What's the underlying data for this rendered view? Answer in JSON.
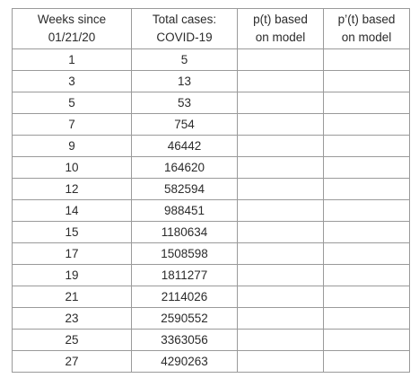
{
  "table": {
    "headers": [
      [
        "Weeks since",
        "01/21/20"
      ],
      [
        "Total cases:",
        "COVID-19"
      ],
      [
        "p(t) based",
        "on model"
      ],
      [
        "p’(t) based",
        "on model"
      ]
    ],
    "rows": [
      [
        "1",
        "5",
        "",
        ""
      ],
      [
        "3",
        "13",
        "",
        ""
      ],
      [
        "5",
        "53",
        "",
        ""
      ],
      [
        "7",
        "754",
        "",
        ""
      ],
      [
        "9",
        "46442",
        "",
        ""
      ],
      [
        "10",
        "164620",
        "",
        ""
      ],
      [
        "12",
        "582594",
        "",
        ""
      ],
      [
        "14",
        "988451",
        "",
        ""
      ],
      [
        "15",
        "1180634",
        "",
        ""
      ],
      [
        "17",
        "1508598",
        "",
        ""
      ],
      [
        "19",
        "1811277",
        "",
        ""
      ],
      [
        "21",
        "2114026",
        "",
        ""
      ],
      [
        "23",
        "2590552",
        "",
        ""
      ],
      [
        "25",
        "3363056",
        "",
        ""
      ],
      [
        "27",
        "4290263",
        "",
        ""
      ]
    ]
  }
}
